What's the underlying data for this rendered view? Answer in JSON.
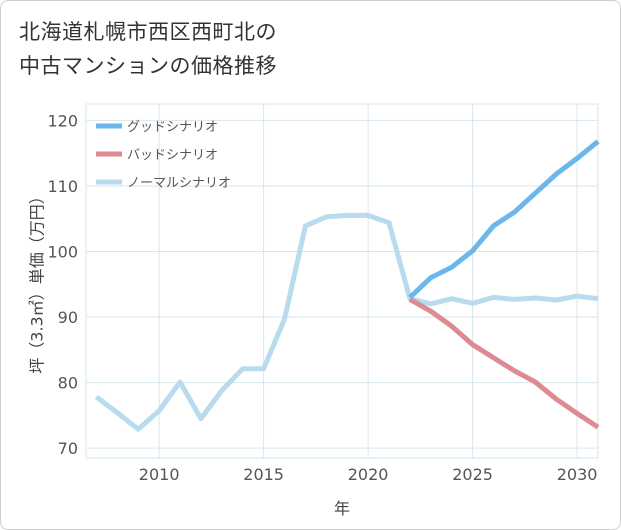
{
  "title_lines": [
    "北海道札幌市西区西町北の",
    "中古マンションの価格推移"
  ],
  "chart_data": {
    "type": "line",
    "title": "北海道札幌市西区西町北の中古マンションの価格推移",
    "xlabel": "年",
    "ylabel": "坪（3.3㎡）単価（万円）",
    "xlim": [
      2006.5,
      2031
    ],
    "ylim": [
      68.5,
      122.5
    ],
    "xticks": [
      2010,
      2015,
      2020,
      2025,
      2030
    ],
    "yticks": [
      70,
      80,
      90,
      100,
      110,
      120
    ],
    "grid": true,
    "legend_position": "top-left",
    "series": [
      {
        "name": "グッドシナリオ",
        "color": "#6bb7ea",
        "x": [
          2022,
          2023,
          2024,
          2025,
          2026,
          2027,
          2028,
          2029,
          2030,
          2031
        ],
        "y": [
          93.0,
          96.0,
          97.6,
          100.1,
          103.9,
          106.0,
          108.9,
          111.8,
          114.2,
          116.8
        ]
      },
      {
        "name": "バッドシナリオ",
        "color": "#de8a93",
        "x": [
          2022,
          2023,
          2024,
          2025,
          2026,
          2027,
          2028,
          2029,
          2030,
          2031
        ],
        "y": [
          92.7,
          90.9,
          88.6,
          85.8,
          83.8,
          81.8,
          80.1,
          77.5,
          75.3,
          73.2
        ]
      },
      {
        "name": "ノーマルシナリオ",
        "color": "#b8dbed",
        "x": [
          2007,
          2008,
          2009,
          2010,
          2011,
          2012,
          2013,
          2014,
          2015,
          2016,
          2017,
          2018,
          2019,
          2020,
          2021,
          2022,
          2023,
          2024,
          2025,
          2026,
          2027,
          2028,
          2029,
          2030,
          2031
        ],
        "y": [
          77.8,
          75.4,
          72.9,
          75.7,
          80.1,
          74.5,
          78.8,
          82.1,
          82.1,
          89.7,
          103.9,
          105.3,
          105.5,
          105.5,
          104.4,
          92.8,
          92.0,
          92.8,
          92.1,
          93.0,
          92.7,
          92.9,
          92.6,
          93.2,
          92.8
        ]
      }
    ]
  }
}
